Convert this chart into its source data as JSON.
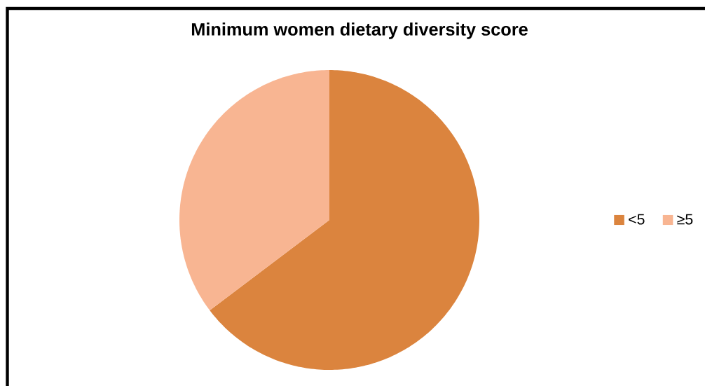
{
  "chart_data": {
    "type": "pie",
    "title": "Minimum women dietary diversity score",
    "categories": [
      "<5",
      "≥5"
    ],
    "values": [
      64.7,
      35.3
    ],
    "colors": [
      "#db843e",
      "#f8b592"
    ],
    "legend": "right"
  }
}
